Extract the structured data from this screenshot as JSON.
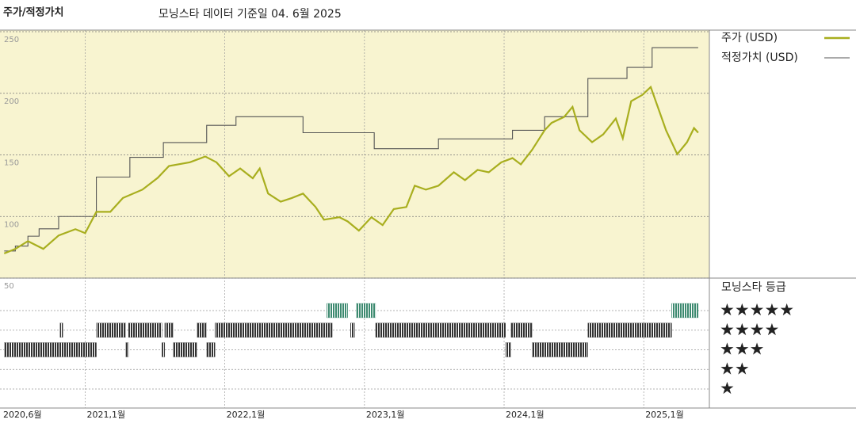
{
  "chart_data": {
    "type": "line",
    "title": "주가/적정가치",
    "subtitle": "모닝스타 데이터 기준일 04. 6월 2025",
    "xlim": [
      2020.39,
      2025.47
    ],
    "xticks": [
      {
        "value": 2020.42,
        "label": "2020,6월"
      },
      {
        "value": 2021.0,
        "label": "2021,1월"
      },
      {
        "value": 2022.0,
        "label": "2022,1월"
      },
      {
        "value": 2023.0,
        "label": "2023,1월"
      },
      {
        "value": 2024.0,
        "label": "2024,1월"
      },
      {
        "value": 2025.0,
        "label": "2025,1월"
      }
    ],
    "ylim": [
      50,
      250
    ],
    "yticks": [
      50,
      100,
      150,
      200,
      250
    ],
    "grid": true,
    "series": [
      {
        "name": "주가 (USD)",
        "color": "#a8ae1e",
        "x": [
          2020.42,
          2020.5,
          2020.59,
          2020.7,
          2020.81,
          2020.93,
          2021.0,
          2021.08,
          2021.18,
          2021.27,
          2021.41,
          2021.52,
          2021.6,
          2021.75,
          2021.86,
          2021.94,
          2022.03,
          2022.11,
          2022.2,
          2022.25,
          2022.31,
          2022.4,
          2022.48,
          2022.56,
          2022.65,
          2022.71,
          2022.82,
          2022.88,
          2022.96,
          2023.05,
          2023.13,
          2023.21,
          2023.3,
          2023.36,
          2023.44,
          2023.53,
          2023.64,
          2023.72,
          2023.81,
          2023.89,
          2023.98,
          2024.06,
          2024.12,
          2024.2,
          2024.29,
          2024.34,
          2024.43,
          2024.49,
          2024.54,
          2024.63,
          2024.71,
          2024.8,
          2024.85,
          2024.91,
          2024.99,
          2025.05,
          2025.11,
          2025.16,
          2025.24,
          2025.31,
          2025.36,
          2025.39
        ],
        "values": [
          70,
          73.7,
          80,
          73.7,
          84.6,
          89.7,
          86.5,
          103.8,
          103.8,
          115,
          121.8,
          131.4,
          141,
          144,
          148.7,
          144,
          132.7,
          139,
          131,
          139,
          118.6,
          112,
          115,
          118.6,
          107.7,
          97.4,
          99.4,
          96,
          88.5,
          99.4,
          93,
          106,
          107.7,
          125,
          121.8,
          125,
          135.9,
          129.5,
          137.8,
          135.9,
          144,
          147.4,
          142.3,
          154,
          170,
          176,
          180.8,
          189,
          170,
          160.3,
          166.7,
          179.5,
          163.5,
          193.6,
          198.7,
          205.1,
          185.9,
          169.9,
          150.6,
          160.3,
          171.8,
          168
        ]
      },
      {
        "name": "적정가치 (USD)",
        "color": "#555555",
        "x": [
          2020.42,
          2020.5,
          2020.59,
          2020.67,
          2020.81,
          2021.08,
          2021.32,
          2021.56,
          2021.87,
          2022.08,
          2022.56,
          2023.07,
          2023.53,
          2024.06,
          2024.29,
          2024.6,
          2024.88,
          2025.06,
          2025.39
        ],
        "values": [
          72,
          76,
          84,
          90,
          100,
          132,
          148,
          160,
          174,
          181,
          168,
          155,
          163,
          170,
          181,
          212,
          221,
          237,
          237
        ]
      }
    ],
    "rating_title": "모닝스타 등급",
    "rating_levels": [
      {
        "value": 5,
        "label": "★★★★★"
      },
      {
        "value": 4,
        "label": "★★★★"
      },
      {
        "value": 3,
        "label": "★★★"
      },
      {
        "value": 2,
        "label": "★★"
      },
      {
        "value": 1,
        "label": "★"
      }
    ],
    "ratings": [
      {
        "stars": 3,
        "from": 2020.42,
        "to": 2021.08
      },
      {
        "stars": 4,
        "from": 2020.82,
        "to": 2020.84
      },
      {
        "stars": 4,
        "from": 2021.08,
        "to": 2021.29
      },
      {
        "stars": 3,
        "from": 2021.29,
        "to": 2021.31
      },
      {
        "stars": 4,
        "from": 2021.31,
        "to": 2021.55
      },
      {
        "stars": 3,
        "from": 2021.55,
        "to": 2021.57
      },
      {
        "stars": 4,
        "from": 2021.57,
        "to": 2021.63
      },
      {
        "stars": 3,
        "from": 2021.63,
        "to": 2021.8
      },
      {
        "stars": 4,
        "from": 2021.8,
        "to": 2021.87
      },
      {
        "stars": 3,
        "from": 2021.87,
        "to": 2021.93
      },
      {
        "stars": 4,
        "from": 2021.93,
        "to": 2022.77
      },
      {
        "stars": 5,
        "from": 2022.73,
        "to": 2022.88
      },
      {
        "stars": 4,
        "from": 2022.9,
        "to": 2022.93
      },
      {
        "stars": 5,
        "from": 2022.94,
        "to": 2023.08
      },
      {
        "stars": 4,
        "from": 2023.08,
        "to": 2024.01
      },
      {
        "stars": 3,
        "from": 2024.01,
        "to": 2024.05
      },
      {
        "stars": 4,
        "from": 2024.05,
        "to": 2024.2
      },
      {
        "stars": 3,
        "from": 2024.2,
        "to": 2024.6
      },
      {
        "stars": 4,
        "from": 2024.6,
        "to": 2025.2
      },
      {
        "stars": 5,
        "from": 2025.2,
        "to": 2025.39
      }
    ],
    "rating_colors": {
      "5": "#3d8a70",
      "4": "#333333",
      "3": "#333333",
      "2": "#333333",
      "1": "#333333"
    }
  }
}
